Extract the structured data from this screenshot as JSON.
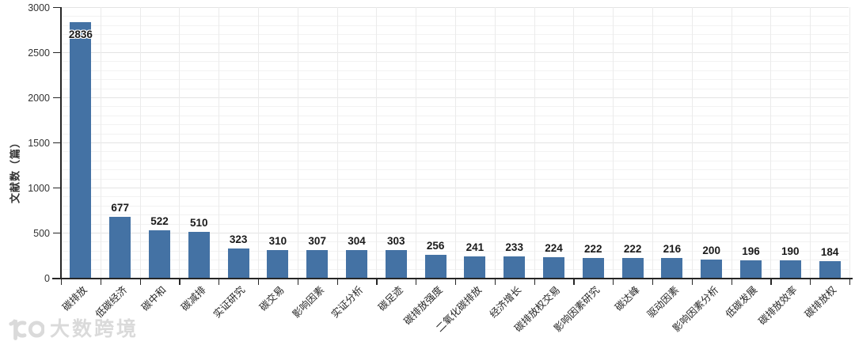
{
  "chart_data": {
    "type": "bar",
    "title": "",
    "xlabel": "",
    "ylabel": "文献数（篇）",
    "categories": [
      "碳排放",
      "低碳经济",
      "碳中和",
      "碳减排",
      "实证研究",
      "碳交易",
      "影响因素",
      "实证分析",
      "碳足迹",
      "碳排放强度",
      "二氧化碳排放",
      "经济增长",
      "碳排放权交易",
      "影响因素研究",
      "碳达峰",
      "驱动因素",
      "影响因素分析",
      "低碳发展",
      "碳排放效率",
      "碳排放权"
    ],
    "values": [
      2836,
      677,
      522,
      510,
      323,
      310,
      307,
      304,
      303,
      256,
      241,
      233,
      224,
      222,
      222,
      216,
      200,
      196,
      190,
      184
    ],
    "ylim": [
      0,
      3000
    ],
    "yticks": [
      0,
      500,
      1000,
      1500,
      2000,
      2500,
      3000
    ],
    "ytick_step": 500,
    "minor_grid_step": 100,
    "grid": "horizontal minor+major gridlines and vertical category gridlines, light gray",
    "legend": false,
    "data_labels": true,
    "bar_color": "#4472A4",
    "axis_color": "#262626",
    "label_color": "#1a1a1a",
    "x_label_rotation_deg": -45
  },
  "watermark": {
    "text": "大数跨境",
    "logo": "100-logo"
  }
}
